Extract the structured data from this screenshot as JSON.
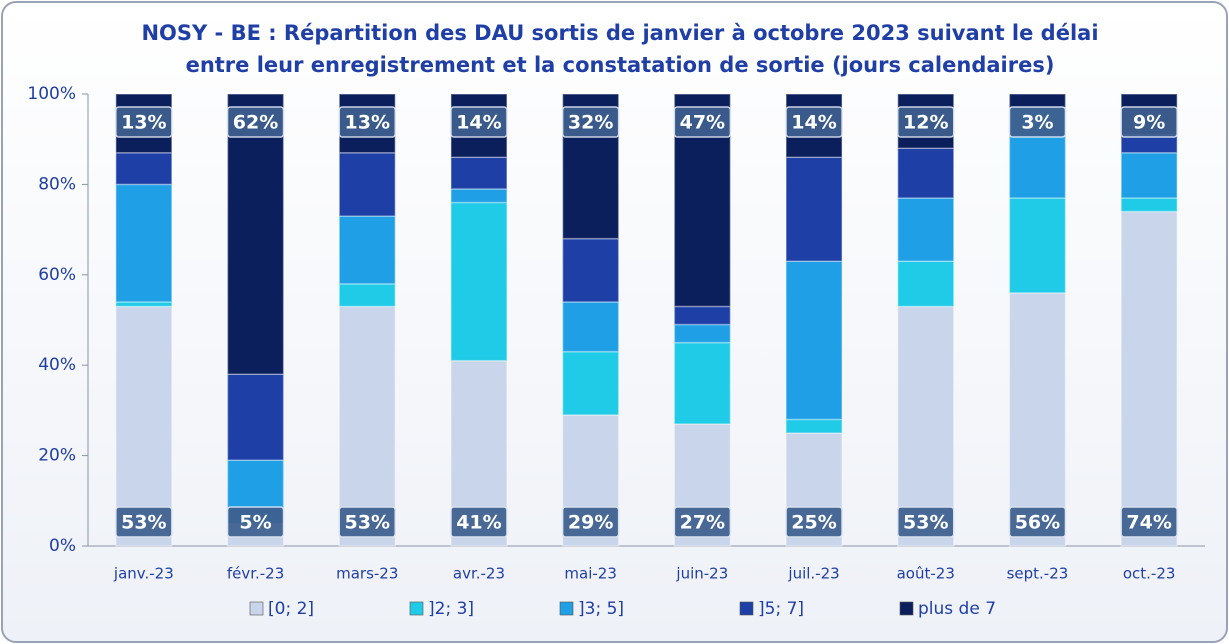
{
  "chart_data": {
    "type": "stacked_bar",
    "title": [
      "NOSY - BE : Répartition des DAU sortis de janvier à octobre 2023 suivant le délai",
      "entre leur enregistrement et la constatation de sortie (jours calendaires)"
    ],
    "categories": [
      "janv.-23",
      "févr.-23",
      "mars-23",
      "avr.-23",
      "mai-23",
      "juin-23",
      "juil.-23",
      "août-23",
      "sept.-23",
      "oct.-23"
    ],
    "series": [
      {
        "name": "[0; 2]",
        "color": "#c9d5ea",
        "values": [
          53,
          5,
          53,
          41,
          29,
          27,
          25,
          53,
          56,
          74
        ],
        "value_labels": [
          "53%",
          "5%",
          "53%",
          "41%",
          "29%",
          "27%",
          "25%",
          "53%",
          "56%",
          "74%"
        ]
      },
      {
        "name": "]2; 3]",
        "color": "#1fcbe6",
        "values": [
          1,
          0,
          5,
          35,
          14,
          18,
          3,
          10,
          21,
          3
        ]
      },
      {
        "name": "]3; 5]",
        "color": "#1f9fe6",
        "values": [
          26,
          14,
          15,
          3,
          11,
          4,
          35,
          14,
          20,
          10
        ]
      },
      {
        "name": "]5; 7]",
        "color": "#1d3fa6",
        "values": [
          7,
          19,
          14,
          7,
          14,
          4,
          23,
          11,
          0,
          4
        ]
      },
      {
        "name": "plus de 7",
        "color": "#0b1f5c",
        "values": [
          13,
          62,
          13,
          14,
          32,
          47,
          14,
          12,
          3,
          9
        ],
        "value_labels": [
          "13%",
          "62%",
          "13%",
          "14%",
          "32%",
          "47%",
          "14%",
          "12%",
          "3%",
          "9%"
        ]
      }
    ],
    "ylim": [
      0,
      100
    ],
    "yticks": [
      {
        "value": 0,
        "label": "0%"
      },
      {
        "value": 20,
        "label": "20%"
      },
      {
        "value": 40,
        "label": "40%"
      },
      {
        "value": 60,
        "label": "60%"
      },
      {
        "value": 80,
        "label": "80%"
      },
      {
        "value": 100,
        "label": "100%"
      }
    ],
    "legend": "bottom"
  }
}
